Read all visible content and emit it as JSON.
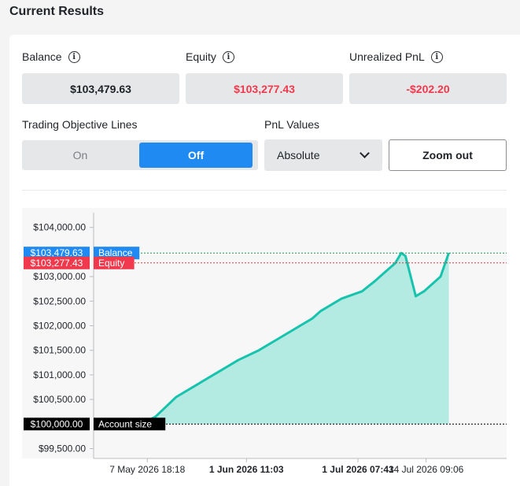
{
  "section_title": "Current Results",
  "stats": {
    "balance": {
      "label": "Balance",
      "value": "$103,479.63"
    },
    "equity": {
      "label": "Equity",
      "value": "$103,277.43"
    },
    "unrealized": {
      "label": "Unrealized PnL",
      "value": "-$202.20"
    }
  },
  "controls": {
    "objective_lines_label": "Trading Objective Lines",
    "toggle_on": "On",
    "toggle_off": "Off",
    "selected_toggle": "Off",
    "pnl_label": "PnL Values",
    "pnl_selected": "Absolute",
    "zoom_out": "Zoom out"
  },
  "colors": {
    "accent": "#1f8af2",
    "negative": "#f0394d",
    "line": "#17c3ad",
    "area": "#b3ebe2",
    "balance_tag": "#1f8af2",
    "equity_tag": "#f0394d",
    "account_tag": "#000000"
  },
  "chart_data": {
    "type": "area",
    "ylim": [
      99300,
      104300
    ],
    "yticks": [
      {
        "value": 104000,
        "label": "$104,000.00"
      },
      {
        "value": 103000,
        "label": "$103,000.00"
      },
      {
        "value": 102500,
        "label": "$102,500.00"
      },
      {
        "value": 102000,
        "label": "$102,000.00"
      },
      {
        "value": 101500,
        "label": "$101,500.00"
      },
      {
        "value": 101000,
        "label": "$101,000.00"
      },
      {
        "value": 100500,
        "label": "$100,500.00"
      },
      {
        "value": 99500,
        "label": "$99,500.00"
      }
    ],
    "xlim": [
      0,
      100
    ],
    "xticks": [
      {
        "x": 13,
        "label": "7 May 2026 18:18",
        "bold": false
      },
      {
        "x": 37,
        "label": "1 Jun 2026 11:03",
        "bold": true
      },
      {
        "x": 64,
        "label": "1 Jul 2026 07:43",
        "bold": true
      },
      {
        "x": 80.5,
        "label": "14 Jul 2026 09:06",
        "bold": false
      }
    ],
    "reference_lines": [
      {
        "name": "Balance",
        "value": 103479.63,
        "label": "$103,479.63",
        "color": "#1f8af2",
        "line_color": "#1a9a55"
      },
      {
        "name": "Equity",
        "value": 103277.43,
        "label": "$103,277.43",
        "color": "#f0394d",
        "line_color": "#e0303f"
      },
      {
        "name": "Account size",
        "value": 100000,
        "label": "$100,000.00",
        "color": "#000000",
        "line_color": "#000000"
      }
    ],
    "series": [
      {
        "x": [
          11.5,
          15,
          20,
          25,
          30,
          35,
          40,
          45,
          50,
          53,
          55,
          60,
          65,
          68,
          70,
          73,
          74.5,
          75.5,
          78,
          80,
          84,
          86
        ],
        "y": [
          100000,
          100150,
          100550,
          100800,
          101050,
          101300,
          101500,
          101750,
          102000,
          102150,
          102300,
          102550,
          102700,
          102900,
          103050,
          103270,
          103480,
          103420,
          102600,
          102700,
          103000,
          103480
        ]
      }
    ]
  }
}
